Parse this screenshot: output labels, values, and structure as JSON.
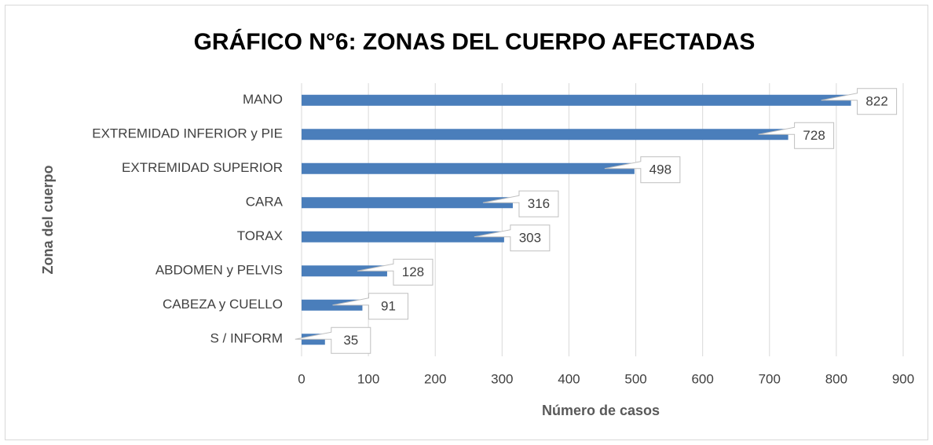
{
  "chart_data": {
    "type": "barh",
    "title": "GRÁFICO N°6: ZONAS DEL CUERPO AFECTADAS",
    "x_label": "Número de casos",
    "y_label": "Zona del cuerpo",
    "categories": [
      "MANO",
      "EXTREMIDAD INFERIOR y PIE",
      "EXTREMIDAD SUPERIOR",
      "CARA",
      "TORAX",
      "ABDOMEN y PELVIS",
      "CABEZA y CUELLO",
      "S / INFORM"
    ],
    "values": [
      822,
      728,
      498,
      316,
      303,
      128,
      91,
      35
    ],
    "color": "#4a7ebb",
    "xlim": [
      0,
      900
    ],
    "xticks": [
      0,
      100,
      200,
      300,
      400,
      500,
      600,
      700,
      800,
      900
    ],
    "grid": true
  }
}
